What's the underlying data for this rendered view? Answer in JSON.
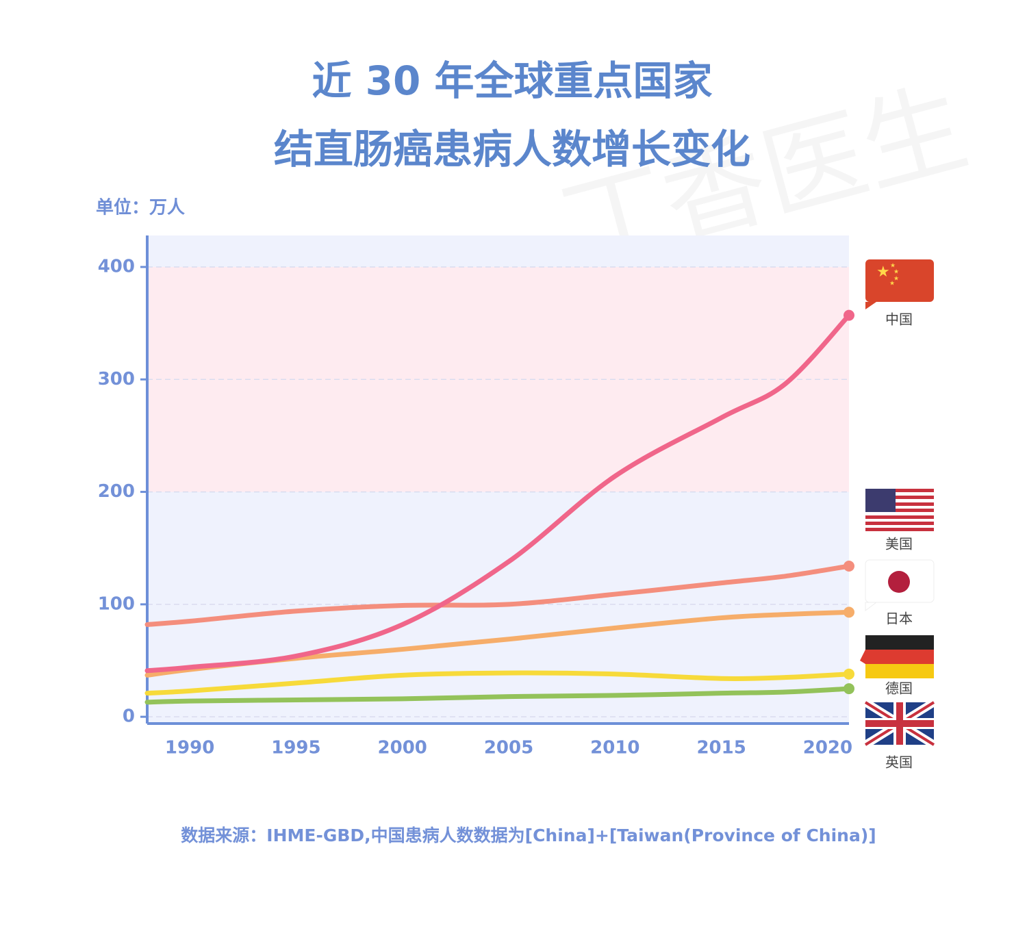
{
  "chart_data": {
    "type": "line",
    "title": [
      "近 30 年全球重点国家",
      "结直肠癌患病人数增长变化"
    ],
    "y_label": "单位：万人",
    "watermark": "丁香医生",
    "source": "数据来源：IHME-GBD,中国患病人数数据为[China]+[Taiwan(Province of China)]",
    "x": [
      1988,
      1990,
      1995,
      2000,
      2005,
      2010,
      2015,
      2018,
      2021
    ],
    "xlim": [
      1988,
      2021
    ],
    "xticks": [
      1990,
      1995,
      2000,
      2005,
      2010,
      2015,
      2020
    ],
    "ylim": [
      -6,
      428
    ],
    "yticks": [
      0,
      100,
      200,
      300,
      400
    ],
    "grid": true,
    "series": [
      {
        "name": "中国",
        "color": "#f0668a",
        "values": [
          41,
          44,
          54,
          82,
          138,
          214,
          266,
          296,
          357
        ]
      },
      {
        "name": "美国",
        "color": "#f48e7d",
        "values": [
          82,
          85,
          94,
          99,
          100,
          109,
          119,
          125,
          134
        ]
      },
      {
        "name": "日本",
        "color": "#f6ad6a",
        "values": [
          37,
          42,
          52,
          60,
          69,
          79,
          88,
          91,
          93
        ]
      },
      {
        "name": "德国",
        "color": "#f7da3a",
        "values": [
          21,
          23,
          30,
          37,
          39,
          38,
          34,
          35,
          38
        ]
      },
      {
        "name": "英国",
        "color": "#93c25a",
        "values": [
          13,
          14,
          15,
          16,
          18,
          19,
          21,
          22,
          25
        ]
      }
    ]
  }
}
